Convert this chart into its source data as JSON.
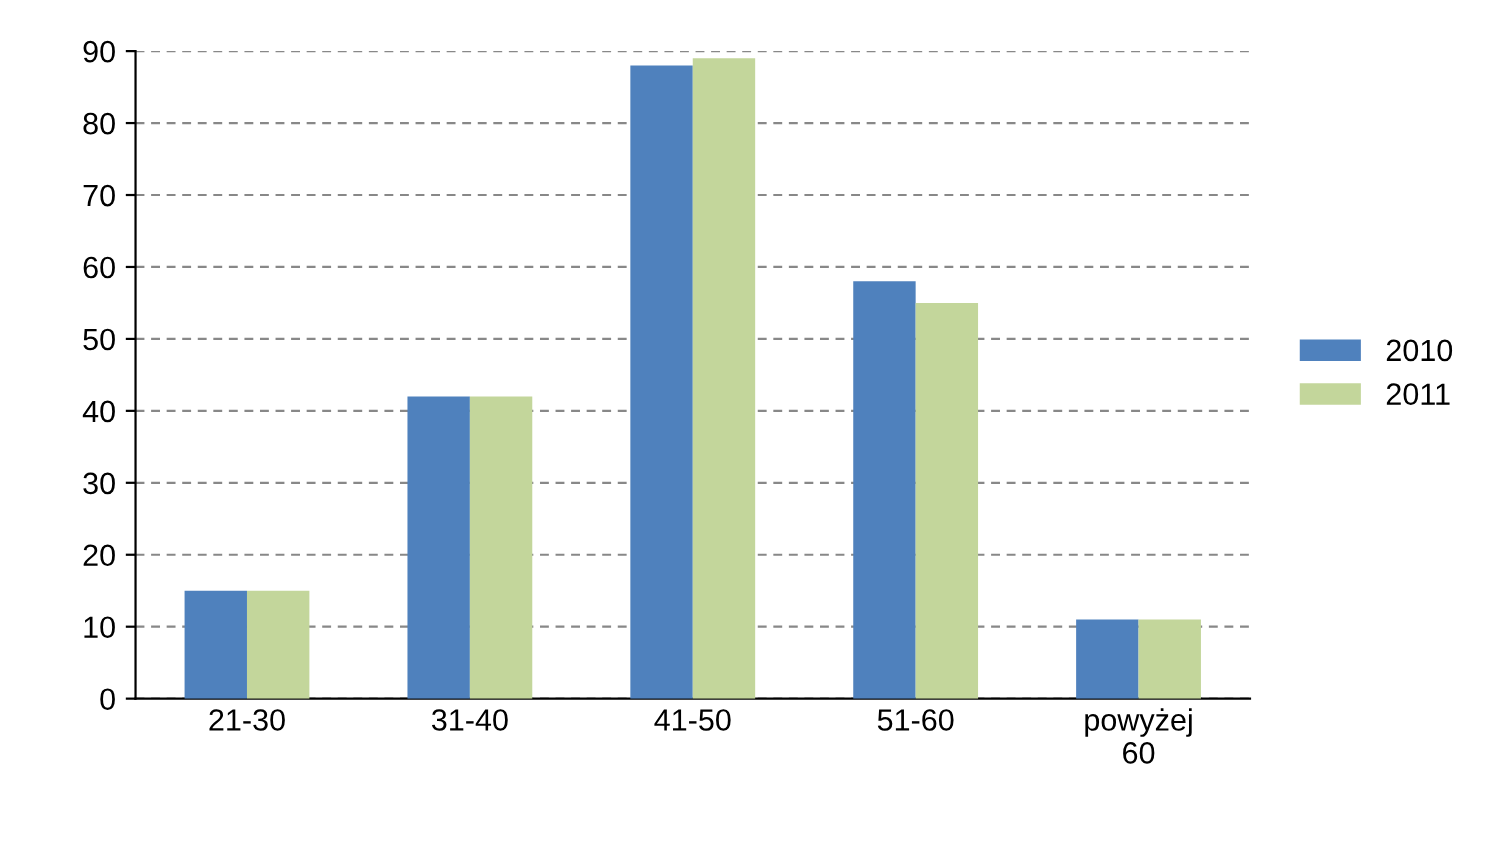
{
  "chart_data": {
    "type": "bar",
    "categories": [
      "21-30",
      "31-40",
      "41-50",
      "51-60",
      "powyżej\n60"
    ],
    "series": [
      {
        "name": "2010",
        "color": "#4f81bd",
        "values": [
          15,
          42,
          88,
          58,
          11
        ]
      },
      {
        "name": "2011",
        "color": "#c3d69b",
        "values": [
          15,
          42,
          89,
          55,
          11
        ]
      }
    ],
    "ylim": [
      0,
      90
    ],
    "yticks": [
      0,
      10,
      20,
      30,
      40,
      50,
      60,
      70,
      80,
      90
    ],
    "grid": "y",
    "legend": "right"
  }
}
